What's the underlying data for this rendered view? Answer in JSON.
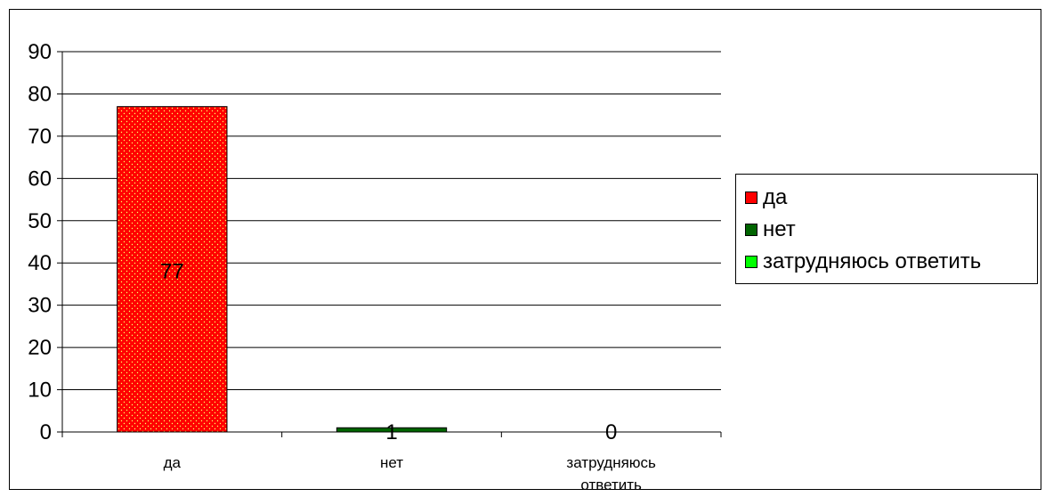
{
  "chart_data": {
    "type": "bar",
    "categories": [
      "да",
      "нет",
      "затрудняюсь ответить"
    ],
    "category_tick_lines": [
      [
        "да"
      ],
      [
        "нет"
      ],
      [
        "затрудняюсь",
        "ответить"
      ]
    ],
    "values": [
      77,
      1,
      0
    ],
    "data_labels": [
      "77",
      "1",
      "0"
    ],
    "colors": [
      "#ff0000",
      "#006400",
      "#00ff00"
    ],
    "ylim": [
      0,
      90
    ],
    "yticks": [
      0,
      10,
      20,
      30,
      40,
      50,
      60,
      70,
      80,
      90
    ],
    "grid": true,
    "legend_position": "right",
    "legend": [
      "да",
      "нет",
      "затрудняюсь ответить"
    ],
    "title": "",
    "xlabel": "",
    "ylabel": ""
  }
}
